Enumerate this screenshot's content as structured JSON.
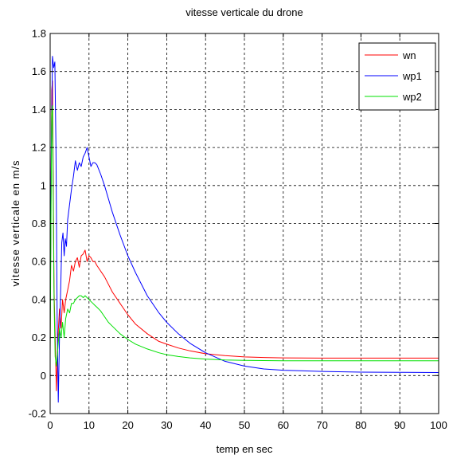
{
  "chart_data": {
    "type": "line",
    "title": "vitesse verticale du drone",
    "xlabel": "temp en sec",
    "ylabel": "vitesse verticale en m/s",
    "xlim": [
      0,
      100
    ],
    "ylim": [
      -0.2,
      1.8
    ],
    "xticks": [
      0,
      10,
      20,
      30,
      40,
      50,
      60,
      70,
      80,
      90,
      100
    ],
    "yticks": [
      -0.2,
      0,
      0.2,
      0.4,
      0.6,
      0.8,
      1,
      1.2,
      1.4,
      1.6,
      1.8
    ],
    "xtick_labels": [
      "0",
      "10",
      "20",
      "30",
      "40",
      "50",
      "60",
      "70",
      "80",
      "90",
      "100"
    ],
    "ytick_labels": [
      "-0.2",
      "0",
      "0.2",
      "0.4",
      "0.6",
      "0.8",
      "1",
      "1.2",
      "1.4",
      "1.6",
      "1.8"
    ],
    "grid": true,
    "legend_position": "top-right",
    "series": [
      {
        "name": "wn",
        "color": "#ff0000",
        "x": [
          0,
          0.2,
          0.4,
          0.6,
          0.8,
          1.0,
          1.3,
          1.6,
          2.0,
          2.4,
          2.8,
          3.2,
          3.6,
          4.0,
          4.5,
          5.0,
          5.5,
          6.0,
          6.5,
          7.0,
          7.5,
          8.0,
          8.5,
          9.0,
          9.5,
          10.0,
          10.5,
          11.0,
          11.5,
          12.0,
          13.0,
          14.0,
          15.0,
          16.0,
          18.0,
          20.0,
          22.0,
          25.0,
          28.0,
          30.0,
          33.0,
          36.0,
          40.0,
          45.0,
          50.0,
          55.0,
          60.0,
          70.0,
          80.0,
          90.0,
          100.0
        ],
        "values": [
          0.15,
          0.9,
          1.5,
          1.55,
          1.0,
          0.45,
          0.2,
          -0.08,
          0.2,
          0.35,
          0.25,
          0.4,
          0.33,
          0.4,
          0.45,
          0.5,
          0.58,
          0.55,
          0.6,
          0.62,
          0.57,
          0.63,
          0.64,
          0.66,
          0.6,
          0.63,
          0.62,
          0.6,
          0.6,
          0.58,
          0.55,
          0.52,
          0.48,
          0.44,
          0.38,
          0.32,
          0.27,
          0.22,
          0.18,
          0.165,
          0.145,
          0.13,
          0.115,
          0.105,
          0.098,
          0.095,
          0.093,
          0.092,
          0.092,
          0.092,
          0.092
        ]
      },
      {
        "name": "wp1",
        "color": "#0000ff",
        "x": [
          0,
          0.3,
          0.6,
          0.9,
          1.2,
          1.5,
          1.8,
          2.1,
          2.4,
          2.7,
          3.0,
          3.3,
          3.6,
          3.9,
          4.2,
          4.5,
          5.0,
          5.5,
          6.0,
          6.5,
          7.0,
          7.5,
          8.0,
          8.5,
          9.0,
          9.5,
          10.0,
          10.5,
          11.0,
          11.5,
          12.0,
          13.0,
          14.0,
          15.0,
          16.0,
          18.0,
          20.0,
          22.0,
          25.0,
          28.0,
          30.0,
          33.0,
          36.0,
          40.0,
          45.0,
          50.0,
          55.0,
          60.0,
          70.0,
          80.0,
          90.0,
          100.0
        ],
        "values": [
          0.3,
          1.2,
          1.68,
          1.62,
          1.65,
          1.2,
          0.3,
          -0.14,
          0.2,
          0.45,
          0.7,
          0.75,
          0.63,
          0.72,
          0.68,
          0.82,
          0.9,
          0.98,
          1.05,
          1.13,
          1.08,
          1.12,
          1.1,
          1.15,
          1.17,
          1.2,
          1.15,
          1.1,
          1.12,
          1.12,
          1.11,
          1.06,
          1.0,
          0.93,
          0.86,
          0.74,
          0.63,
          0.54,
          0.42,
          0.33,
          0.28,
          0.22,
          0.17,
          0.12,
          0.075,
          0.05,
          0.035,
          0.028,
          0.022,
          0.018,
          0.017,
          0.016
        ]
      },
      {
        "name": "wp2",
        "color": "#00e000",
        "x": [
          0,
          0.2,
          0.4,
          0.6,
          0.8,
          1.0,
          1.3,
          1.6,
          2.0,
          2.4,
          2.8,
          3.2,
          3.6,
          4.0,
          4.5,
          5.0,
          5.5,
          6.0,
          6.5,
          7.0,
          7.5,
          8.0,
          8.5,
          9.0,
          9.5,
          10.0,
          10.5,
          11.0,
          11.5,
          12.0,
          13.0,
          14.0,
          15.0,
          16.0,
          18.0,
          20.0,
          22.0,
          25.0,
          28.0,
          30.0,
          33.0,
          36.0,
          40.0,
          45.0,
          50.0,
          55.0,
          60.0,
          70.0,
          80.0,
          90.0,
          100.0
        ],
        "values": [
          0.1,
          0.8,
          1.38,
          1.42,
          0.9,
          0.4,
          0.1,
          0.05,
          0.15,
          0.25,
          0.2,
          0.28,
          0.2,
          0.3,
          0.35,
          0.33,
          0.38,
          0.38,
          0.4,
          0.41,
          0.42,
          0.42,
          0.41,
          0.42,
          0.41,
          0.4,
          0.39,
          0.38,
          0.37,
          0.36,
          0.34,
          0.31,
          0.28,
          0.26,
          0.22,
          0.19,
          0.165,
          0.14,
          0.12,
          0.11,
          0.1,
          0.093,
          0.087,
          0.082,
          0.08,
          0.079,
          0.078,
          0.078,
          0.078,
          0.078,
          0.078
        ]
      }
    ]
  }
}
